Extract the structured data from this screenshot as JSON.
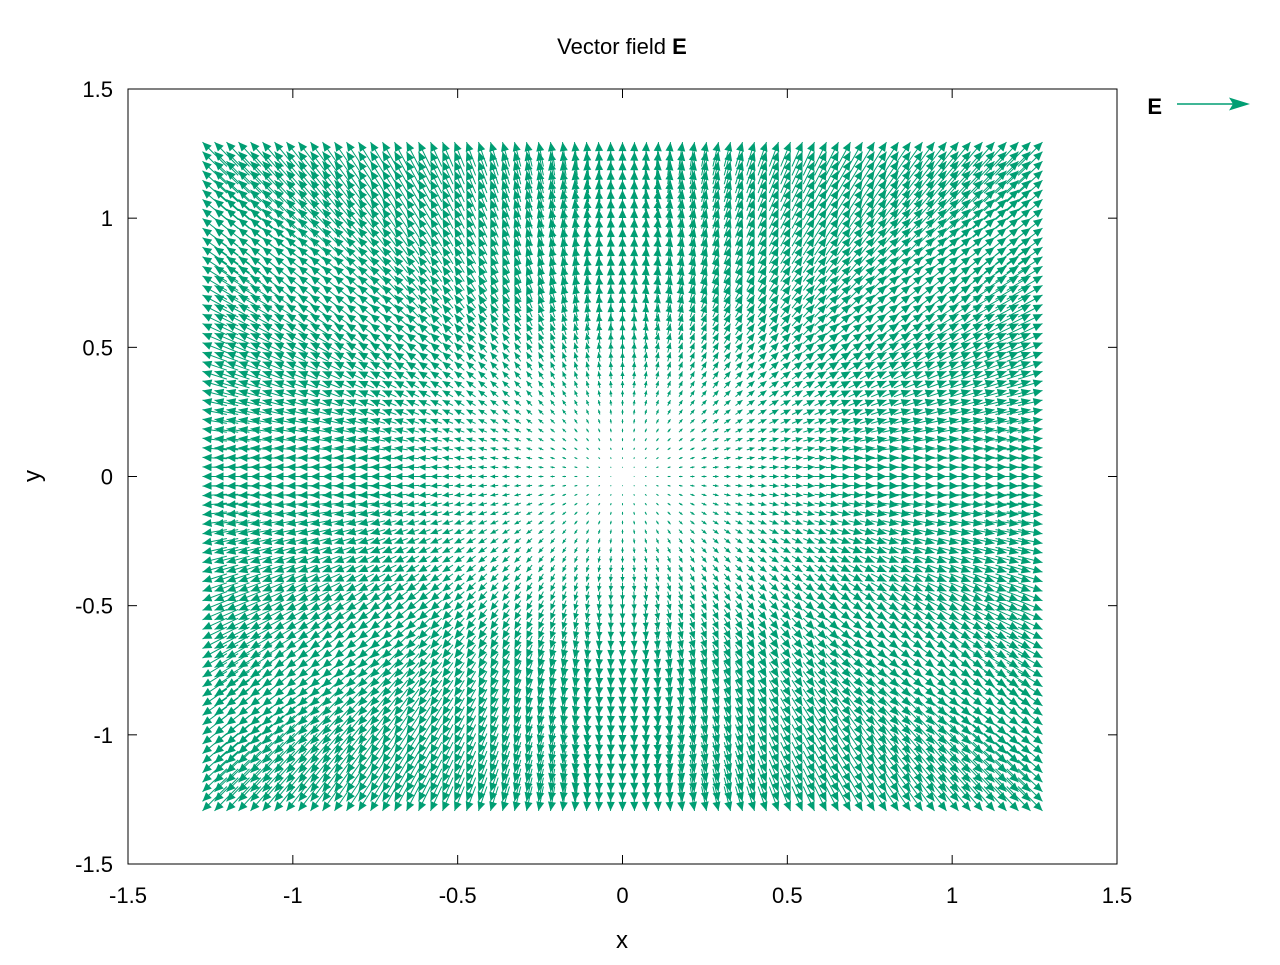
{
  "chart_data": {
    "type": "vector_field",
    "title": {
      "prefix": "Vector field ",
      "symbol": "E"
    },
    "xlabel": "x",
    "ylabel": "y",
    "xlim": [
      -1.5,
      1.5
    ],
    "ylim": [
      -1.5,
      1.5
    ],
    "xticks": [
      -1.5,
      -1,
      -0.5,
      0,
      0.5,
      1,
      1.5
    ],
    "yticks": [
      -1.5,
      -1,
      -0.5,
      0,
      0.5,
      1,
      1.5
    ],
    "xtick_labels": [
      "-1.5",
      "-1",
      "-0.5",
      "0",
      "0.5",
      "1",
      "1.5"
    ],
    "ytick_labels": [
      "-1.5",
      "-1",
      "-0.5",
      "0",
      "0.5",
      "1",
      "1.5"
    ],
    "grid": false,
    "legend": {
      "position": "top-right-outside",
      "entries": [
        {
          "name": "E"
        }
      ]
    },
    "field": {
      "x_range": [
        -1.2,
        1.2
      ],
      "y_range": [
        -1.2,
        1.2
      ],
      "samples": 71,
      "color": "#009e73"
    },
    "series": [
      {
        "name": "E",
        "color": "#009e73"
      }
    ]
  }
}
